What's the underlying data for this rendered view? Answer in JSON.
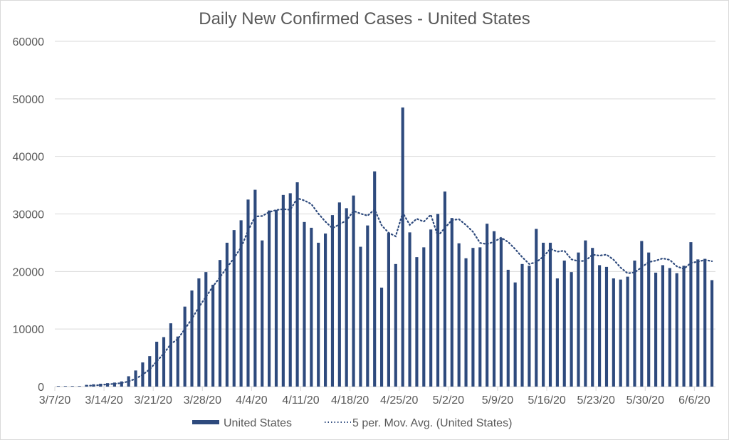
{
  "chart_data": {
    "type": "bar",
    "title": "Daily New Confirmed Cases - United States",
    "xlabel": "",
    "ylabel": "",
    "ylim": [
      0,
      60000
    ],
    "yticks": [
      0,
      10000,
      20000,
      30000,
      40000,
      50000,
      60000
    ],
    "ytick_labels": [
      "0",
      "10000",
      "20000",
      "30000",
      "40000",
      "50000",
      "60000"
    ],
    "xtick_labels": [
      "3/7/20",
      "3/14/20",
      "3/21/20",
      "3/28/20",
      "4/4/20",
      "4/11/20",
      "4/18/20",
      "4/25/20",
      "5/2/20",
      "5/9/20",
      "5/16/20",
      "5/23/20",
      "5/30/20",
      "6/6/20"
    ],
    "grid": true,
    "legend_position": "bottom",
    "colors": {
      "bar": "#2e4a7d",
      "avg_line": "#2e4a7d",
      "grid": "#d9d9d9",
      "text": "#595959"
    },
    "series": [
      {
        "name": "United States",
        "type": "bar",
        "values": [
          100,
          100,
          100,
          100,
          300,
          400,
          500,
          600,
          700,
          900,
          1800,
          2800,
          4200,
          5300,
          7800,
          8600,
          11000,
          8700,
          13900,
          16700,
          18800,
          19900,
          17700,
          22000,
          25000,
          27200,
          28900,
          32500,
          34200,
          25400,
          30600,
          30700,
          33300,
          33600,
          35500,
          28600,
          27600,
          25000,
          26600,
          29800,
          32000,
          31000,
          33200,
          24300,
          28000,
          37400,
          17200,
          26700,
          21300,
          48500,
          26800,
          22500,
          24200,
          27300,
          30000,
          33900,
          29300,
          24900,
          22300,
          24100,
          24200,
          28300,
          27000,
          25800,
          20300,
          18100,
          21300,
          21000,
          27400,
          25000,
          25000,
          18800,
          21900,
          19900,
          23300,
          25400,
          24100,
          21100,
          20800,
          18800,
          18600,
          19100,
          21900,
          25300,
          23300,
          19800,
          21100,
          20600,
          19700,
          21000,
          25100,
          22100,
          22200,
          18500
        ]
      },
      {
        "name": "5 per. Mov. Avg. (United States)",
        "type": "line",
        "style": "dotted",
        "window": 5
      }
    ]
  },
  "legend": {
    "items": [
      {
        "label": "United States"
      },
      {
        "label": "5 per. Mov. Avg. (United States)"
      }
    ]
  }
}
